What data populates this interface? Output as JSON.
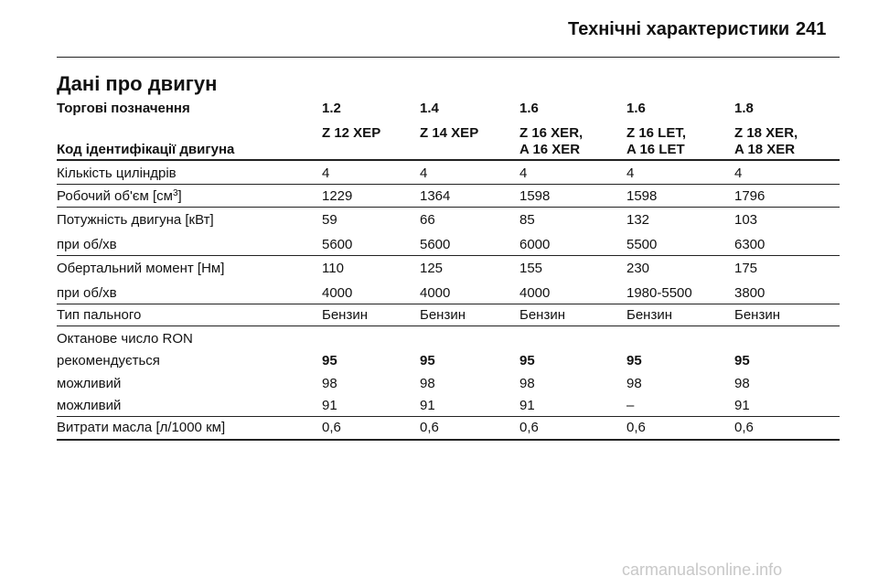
{
  "header": {
    "title": "Технічні характеристики",
    "page": "241"
  },
  "section_title": "Дані про двигун",
  "table": {
    "head": [
      {
        "label": "Торгові позначення",
        "values": [
          [
            "1.2"
          ],
          [
            "1.4"
          ],
          [
            "1.6"
          ],
          [
            "1.6"
          ],
          [
            "1.8"
          ]
        ]
      },
      {
        "label": "Код ідентифікації двигуна",
        "values": [
          [
            "Z 12 XEP"
          ],
          [
            "Z 14 XEP"
          ],
          [
            "Z 16 XER,",
            "A 16 XER"
          ],
          [
            "Z 16 LET,",
            "A 16 LET"
          ],
          [
            "Z 18 XER,",
            "A 18 XER"
          ]
        ]
      }
    ],
    "groups": [
      {
        "lines": [
          {
            "label": "Кількість циліндрів",
            "values": [
              "4",
              "4",
              "4",
              "4",
              "4"
            ]
          }
        ]
      },
      {
        "lines": [
          {
            "label": [
              "Робочий об'єм [см",
              "3",
              "]"
            ],
            "values": [
              "1229",
              "1364",
              "1598",
              "1598",
              "1796"
            ]
          }
        ]
      },
      {
        "lines": [
          {
            "label": "Потужність двигуна [кВт]",
            "values": [
              "59",
              "66",
              "85",
              "132",
              "103"
            ]
          },
          {
            "label": "при об/хв",
            "values": [
              "5600",
              "5600",
              "6000",
              "5500",
              "6300"
            ]
          }
        ]
      },
      {
        "lines": [
          {
            "label": "Обертальний момент [Нм]",
            "values": [
              "110",
              "125",
              "155",
              "230",
              "175"
            ]
          },
          {
            "label": "при об/хв",
            "values": [
              "4000",
              "4000",
              "4000",
              "1980-5500",
              "3800"
            ]
          }
        ]
      },
      {
        "lines": [
          {
            "label": "Тип пального",
            "values": [
              "Бензин",
              "Бензин",
              "Бензин",
              "Бензин",
              "Бензин"
            ]
          }
        ]
      },
      {
        "lines": [
          {
            "label": "Октанове число RON",
            "values": []
          },
          {
            "label": "рекомендується",
            "values": [
              "95",
              "95",
              "95",
              "95",
              "95"
            ],
            "bold": true
          },
          {
            "label": "можливий",
            "values": [
              "98",
              "98",
              "98",
              "98",
              "98"
            ]
          },
          {
            "label": "можливий",
            "values": [
              "91",
              "91",
              "91",
              "–",
              "91"
            ]
          }
        ]
      },
      {
        "lines": [
          {
            "label": "Витрати масла [л/1000 км]",
            "values": [
              "0,6",
              "0,6",
              "0,6",
              "0,6",
              "0,6"
            ]
          }
        ]
      }
    ]
  },
  "watermark": "carmanualsonline.info"
}
